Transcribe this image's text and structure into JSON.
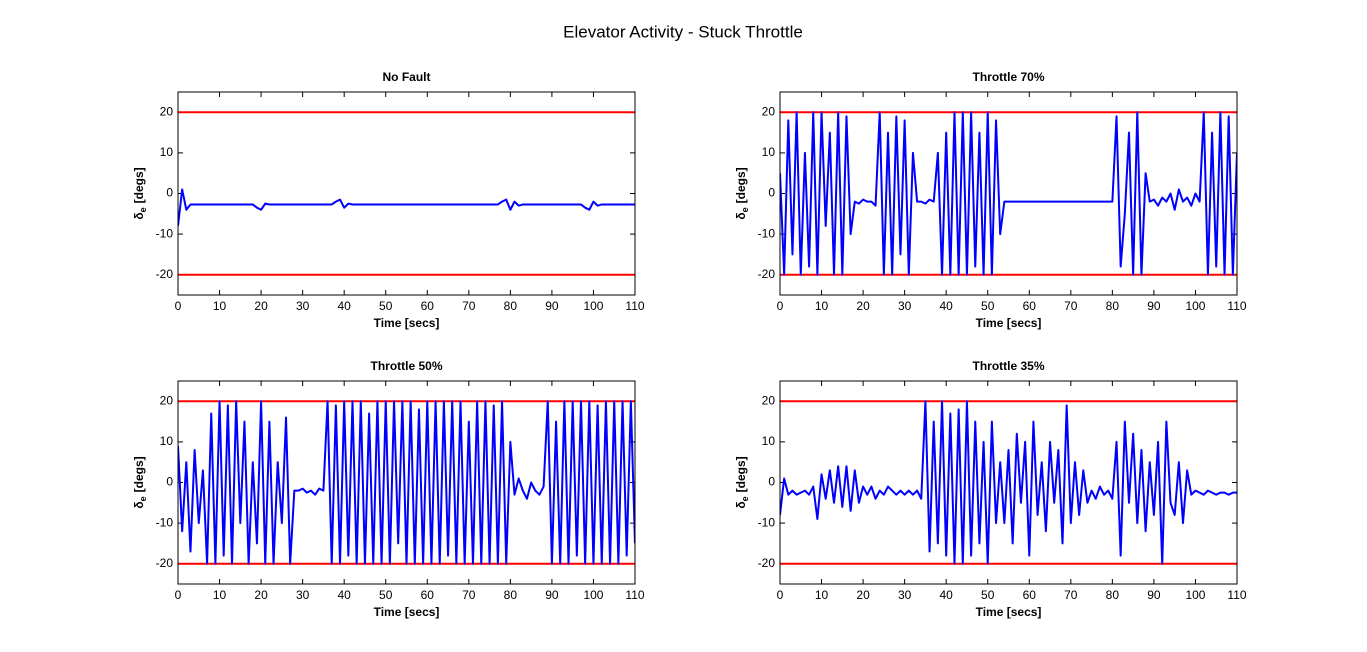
{
  "title": "Elevator Activity - Stuck Throttle",
  "chart_data": [
    {
      "type": "line",
      "title": "No Fault",
      "xlabel": "Time [secs]",
      "ylabel_symbol": "δ",
      "ylabel_sub": "e",
      "ylabel_unit": "[degs]",
      "xlim": [
        0,
        110
      ],
      "xticks": [
        0,
        10,
        20,
        30,
        40,
        50,
        60,
        70,
        80,
        90,
        100,
        110
      ],
      "ylim": [
        -25,
        25
      ],
      "yticks": [
        -20,
        -10,
        0,
        10,
        20
      ],
      "color": "#0000ff",
      "reference_lines": [
        {
          "value": 20,
          "color": "#ff0000"
        },
        {
          "value": -20,
          "color": "#ff0000"
        }
      ],
      "x": [
        0,
        1,
        2,
        3,
        4,
        5,
        6,
        7,
        8,
        9,
        10,
        11,
        12,
        13,
        14,
        15,
        16,
        17,
        18,
        19,
        20,
        21,
        22,
        23,
        24,
        25,
        26,
        27,
        28,
        29,
        30,
        31,
        32,
        33,
        34,
        35,
        36,
        37,
        38,
        39,
        40,
        41,
        42,
        43,
        44,
        45,
        46,
        47,
        48,
        49,
        50,
        51,
        52,
        53,
        54,
        55,
        56,
        57,
        58,
        59,
        60,
        61,
        62,
        63,
        64,
        65,
        66,
        67,
        68,
        69,
        70,
        71,
        72,
        73,
        74,
        75,
        76,
        77,
        78,
        79,
        80,
        81,
        82,
        83,
        84,
        85,
        86,
        87,
        88,
        89,
        90,
        91,
        92,
        93,
        94,
        95,
        96,
        97,
        98,
        99,
        100,
        101,
        102,
        103,
        104,
        105,
        106,
        107,
        108,
        109,
        110
      ],
      "values": [
        -8,
        1,
        -4,
        -2.7,
        -2.7,
        -2.7,
        -2.7,
        -2.7,
        -2.7,
        -2.7,
        -2.7,
        -2.7,
        -2.7,
        -2.7,
        -2.7,
        -2.7,
        -2.7,
        -2.7,
        -2.7,
        -3.5,
        -4,
        -2.5,
        -2.7,
        -2.7,
        -2.7,
        -2.7,
        -2.7,
        -2.7,
        -2.7,
        -2.7,
        -2.7,
        -2.7,
        -2.7,
        -2.7,
        -2.7,
        -2.7,
        -2.7,
        -2.7,
        -2,
        -1.5,
        -3.5,
        -2.5,
        -2.7,
        -2.7,
        -2.7,
        -2.7,
        -2.7,
        -2.7,
        -2.7,
        -2.7,
        -2.7,
        -2.7,
        -2.7,
        -2.7,
        -2.7,
        -2.7,
        -2.7,
        -2.7,
        -2.7,
        -2.7,
        -2.7,
        -2.7,
        -2.7,
        -2.7,
        -2.7,
        -2.7,
        -2.7,
        -2.7,
        -2.7,
        -2.7,
        -2.7,
        -2.7,
        -2.7,
        -2.7,
        -2.7,
        -2.7,
        -2.7,
        -2.7,
        -2,
        -1.5,
        -4,
        -2,
        -3,
        -2.7,
        -2.7,
        -2.7,
        -2.7,
        -2.7,
        -2.7,
        -2.7,
        -2.7,
        -2.7,
        -2.7,
        -2.7,
        -2.7,
        -2.7,
        -2.7,
        -2.7,
        -3.5,
        -4,
        -2,
        -3,
        -2.7,
        -2.7,
        -2.7,
        -2.7,
        -2.7,
        -2.7,
        -2.7,
        -2.7,
        -2.7
      ]
    },
    {
      "type": "line",
      "title": "Throttle 70%",
      "xlabel": "Time [secs]",
      "ylabel_symbol": "δ",
      "ylabel_sub": "e",
      "ylabel_unit": "[degs]",
      "xlim": [
        0,
        110
      ],
      "xticks": [
        0,
        10,
        20,
        30,
        40,
        50,
        60,
        70,
        80,
        90,
        100,
        110
      ],
      "ylim": [
        -25,
        25
      ],
      "yticks": [
        -20,
        -10,
        0,
        10,
        20
      ],
      "color": "#0000ff",
      "reference_lines": [
        {
          "value": 20,
          "color": "#ff0000"
        },
        {
          "value": -20,
          "color": "#ff0000"
        }
      ],
      "x": [
        0,
        1,
        2,
        3,
        4,
        5,
        6,
        7,
        8,
        9,
        10,
        11,
        12,
        13,
        14,
        15,
        16,
        17,
        18,
        19,
        20,
        21,
        22,
        23,
        24,
        25,
        26,
        27,
        28,
        29,
        30,
        31,
        32,
        33,
        34,
        35,
        36,
        37,
        38,
        39,
        40,
        41,
        42,
        43,
        44,
        45,
        46,
        47,
        48,
        49,
        50,
        51,
        52,
        53,
        54,
        55,
        56,
        57,
        58,
        59,
        60,
        61,
        62,
        63,
        64,
        65,
        66,
        67,
        68,
        69,
        70,
        71,
        72,
        73,
        74,
        75,
        76,
        77,
        78,
        79,
        80,
        81,
        82,
        83,
        84,
        85,
        86,
        87,
        88,
        89,
        90,
        91,
        92,
        93,
        94,
        95,
        96,
        97,
        98,
        99,
        100,
        101,
        102,
        103,
        104,
        105,
        106,
        107,
        108,
        109,
        110
      ],
      "values": [
        5,
        -20,
        18,
        -15,
        20,
        -20,
        10,
        -18,
        20,
        -20,
        20,
        -8,
        15,
        -20,
        20,
        -20,
        19,
        -10,
        -2,
        -2.5,
        -1.5,
        -2,
        -2,
        -3,
        20,
        -20,
        15,
        -20,
        19,
        -15,
        18,
        -20,
        10,
        -2,
        -2,
        -2.5,
        -1.5,
        -2,
        10,
        -20,
        15,
        -20,
        20,
        -20,
        20,
        -20,
        20,
        -18,
        15,
        -20,
        20,
        -20,
        18,
        -10,
        -2,
        -2,
        -2,
        -2,
        -2,
        -2,
        -2,
        -2,
        -2,
        -2,
        -2,
        -2,
        -2,
        -2,
        -2,
        -2,
        -2,
        -2,
        -2,
        -2,
        -2,
        -2,
        -2,
        -2,
        -2,
        -2,
        -2,
        19,
        -18,
        -5,
        15,
        -20,
        20,
        -20,
        5,
        -2,
        -1.5,
        -3,
        -1,
        -2,
        0,
        -4,
        1,
        -2,
        -1,
        -3,
        0,
        -2,
        20,
        -20,
        15,
        -18,
        20,
        -20,
        19,
        -20,
        10
      ]
    },
    {
      "type": "line",
      "title": "Throttle 50%",
      "xlabel": "Time [secs]",
      "ylabel_symbol": "δ",
      "ylabel_sub": "e",
      "ylabel_unit": "[degs]",
      "xlim": [
        0,
        110
      ],
      "xticks": [
        0,
        10,
        20,
        30,
        40,
        50,
        60,
        70,
        80,
        90,
        100,
        110
      ],
      "ylim": [
        -25,
        25
      ],
      "yticks": [
        -20,
        -10,
        0,
        10,
        20
      ],
      "color": "#0000ff",
      "reference_lines": [
        {
          "value": 20,
          "color": "#ff0000"
        },
        {
          "value": -20,
          "color": "#ff0000"
        }
      ],
      "x": [
        0,
        1,
        2,
        3,
        4,
        5,
        6,
        7,
        8,
        9,
        10,
        11,
        12,
        13,
        14,
        15,
        16,
        17,
        18,
        19,
        20,
        21,
        22,
        23,
        24,
        25,
        26,
        27,
        28,
        29,
        30,
        31,
        32,
        33,
        34,
        35,
        36,
        37,
        38,
        39,
        40,
        41,
        42,
        43,
        44,
        45,
        46,
        47,
        48,
        49,
        50,
        51,
        52,
        53,
        54,
        55,
        56,
        57,
        58,
        59,
        60,
        61,
        62,
        63,
        64,
        65,
        66,
        67,
        68,
        69,
        70,
        71,
        72,
        73,
        74,
        75,
        76,
        77,
        78,
        79,
        80,
        81,
        82,
        83,
        84,
        85,
        86,
        87,
        88,
        89,
        90,
        91,
        92,
        93,
        94,
        95,
        96,
        97,
        98,
        99,
        100,
        101,
        102,
        103,
        104,
        105,
        106,
        107,
        108,
        109,
        110
      ],
      "values": [
        9,
        -12,
        5,
        -17,
        8,
        -10,
        3,
        -20,
        17,
        -20,
        20,
        -18,
        19,
        -20,
        20,
        -10,
        15,
        -20,
        5,
        -15,
        20,
        -20,
        15,
        -20,
        5,
        -10,
        16,
        -20,
        -2,
        -2,
        -1.5,
        -2.5,
        -2,
        -3,
        -1.5,
        -2,
        20,
        -20,
        19,
        -20,
        20,
        -18,
        20,
        -20,
        20,
        -20,
        17,
        -20,
        20,
        -20,
        20,
        -20,
        20,
        -15,
        20,
        -20,
        20,
        -20,
        18,
        -20,
        20,
        -20,
        20,
        -20,
        20,
        -18,
        20,
        -20,
        20,
        -20,
        15,
        -20,
        20,
        -20,
        20,
        -20,
        19,
        -20,
        20,
        -20,
        10,
        -3,
        1,
        -2,
        -4,
        0,
        -2,
        -3,
        -1,
        20,
        -20,
        15,
        -20,
        20,
        -20,
        20,
        -18,
        20,
        -20,
        20,
        -20,
        19,
        -20,
        20,
        -20,
        20,
        -20,
        20,
        -18,
        20,
        -15
      ]
    },
    {
      "type": "line",
      "title": "Throttle 35%",
      "xlabel": "Time [secs]",
      "ylabel_symbol": "δ",
      "ylabel_sub": "e",
      "ylabel_unit": "[degs]",
      "xlim": [
        0,
        110
      ],
      "xticks": [
        0,
        10,
        20,
        30,
        40,
        50,
        60,
        70,
        80,
        90,
        100,
        110
      ],
      "ylim": [
        -25,
        25
      ],
      "yticks": [
        -20,
        -10,
        0,
        10,
        20
      ],
      "color": "#0000ff",
      "reference_lines": [
        {
          "value": 20,
          "color": "#ff0000"
        },
        {
          "value": -20,
          "color": "#ff0000"
        }
      ],
      "x": [
        0,
        1,
        2,
        3,
        4,
        5,
        6,
        7,
        8,
        9,
        10,
        11,
        12,
        13,
        14,
        15,
        16,
        17,
        18,
        19,
        20,
        21,
        22,
        23,
        24,
        25,
        26,
        27,
        28,
        29,
        30,
        31,
        32,
        33,
        34,
        35,
        36,
        37,
        38,
        39,
        40,
        41,
        42,
        43,
        44,
        45,
        46,
        47,
        48,
        49,
        50,
        51,
        52,
        53,
        54,
        55,
        56,
        57,
        58,
        59,
        60,
        61,
        62,
        63,
        64,
        65,
        66,
        67,
        68,
        69,
        70,
        71,
        72,
        73,
        74,
        75,
        76,
        77,
        78,
        79,
        80,
        81,
        82,
        83,
        84,
        85,
        86,
        87,
        88,
        89,
        90,
        91,
        92,
        93,
        94,
        95,
        96,
        97,
        98,
        99,
        100,
        101,
        102,
        103,
        104,
        105,
        106,
        107,
        108,
        109,
        110
      ],
      "values": [
        -8,
        1,
        -3,
        -2,
        -3,
        -2.5,
        -2,
        -3,
        -1,
        -9,
        2,
        -4,
        3,
        -5,
        4,
        -6,
        4,
        -7,
        3,
        -5,
        -1,
        -3,
        -1,
        -4,
        -2,
        -3,
        -1,
        -2,
        -3,
        -2,
        -3,
        -2,
        -3,
        -2,
        -4,
        20,
        -17,
        15,
        -15,
        20,
        -18,
        17,
        -20,
        18,
        -20,
        20,
        -18,
        15,
        -15,
        10,
        -20,
        15,
        -10,
        5,
        -10,
        8,
        -15,
        12,
        -5,
        10,
        -18,
        15,
        -8,
        5,
        -12,
        10,
        -5,
        8,
        -15,
        19,
        -10,
        5,
        -8,
        3,
        -5,
        -2,
        -4,
        -1,
        -3,
        -2,
        -4,
        10,
        -18,
        15,
        -5,
        12,
        -10,
        8,
        -12,
        5,
        -8,
        10,
        -20,
        15,
        -5,
        -8,
        5,
        -10,
        3,
        -3,
        -2,
        -2.5,
        -3,
        -2,
        -2.5,
        -3,
        -2.5,
        -2.5,
        -3,
        -2.5,
        -2.5
      ]
    }
  ]
}
